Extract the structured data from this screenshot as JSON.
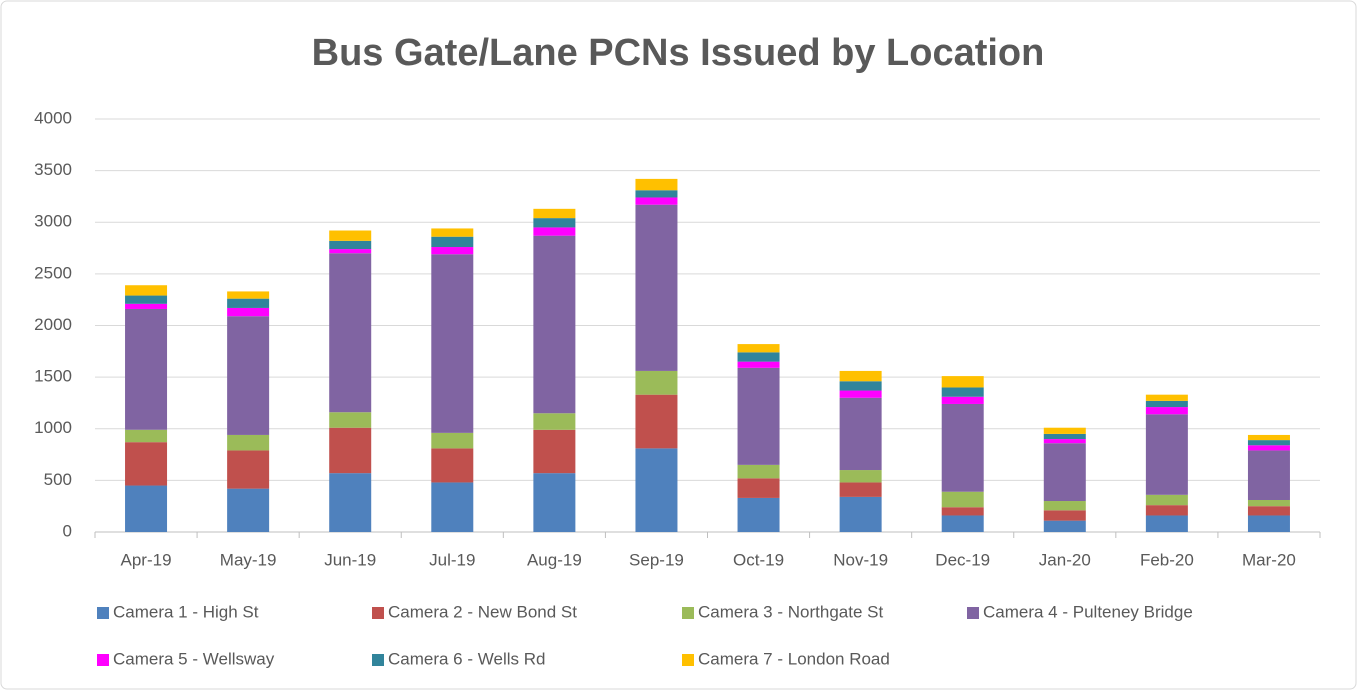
{
  "chart_data": {
    "type": "stacked_bar",
    "title": "Bus Gate/Lane PCNs Issued by Location",
    "categories": [
      "Apr-19",
      "May-19",
      "Jun-19",
      "Jul-19",
      "Aug-19",
      "Sep-19",
      "Oct-19",
      "Nov-19",
      "Dec-19",
      "Jan-20",
      "Feb-20",
      "Mar-20"
    ],
    "series": [
      {
        "name": "Camera 1 - High St",
        "color": "#4f81bd",
        "values": [
          450,
          420,
          570,
          480,
          570,
          810,
          330,
          340,
          160,
          110,
          160,
          160
        ]
      },
      {
        "name": "Camera 2 - New Bond St",
        "color": "#c0504d",
        "values": [
          420,
          370,
          440,
          330,
          420,
          520,
          190,
          140,
          80,
          100,
          100,
          90
        ]
      },
      {
        "name": "Camera 3 - Northgate St",
        "color": "#9bbb59",
        "values": [
          120,
          150,
          150,
          150,
          160,
          230,
          130,
          120,
          150,
          90,
          100,
          60
        ]
      },
      {
        "name": "Camera 4 - Pulteney Bridge",
        "color": "#8064a2",
        "values": [
          1170,
          1150,
          1540,
          1730,
          1720,
          1610,
          940,
          700,
          850,
          560,
          780,
          480
        ]
      },
      {
        "name": "Camera 5 - Wellsway",
        "color": "#ff00ff",
        "values": [
          50,
          80,
          40,
          70,
          80,
          70,
          60,
          70,
          70,
          40,
          70,
          50
        ]
      },
      {
        "name": "Camera 6 - Wells Rd",
        "color": "#31849b",
        "values": [
          80,
          90,
          80,
          100,
          90,
          70,
          90,
          90,
          90,
          50,
          60,
          50
        ]
      },
      {
        "name": "Camera 7 - London Road",
        "color": "#ffc000",
        "values": [
          100,
          70,
          100,
          80,
          90,
          110,
          80,
          100,
          110,
          60,
          60,
          50
        ]
      }
    ],
    "ylim": [
      0,
      4000
    ],
    "yticks": [
      0,
      500,
      1000,
      1500,
      2000,
      2500,
      3000,
      3500,
      4000
    ],
    "grid": true
  }
}
